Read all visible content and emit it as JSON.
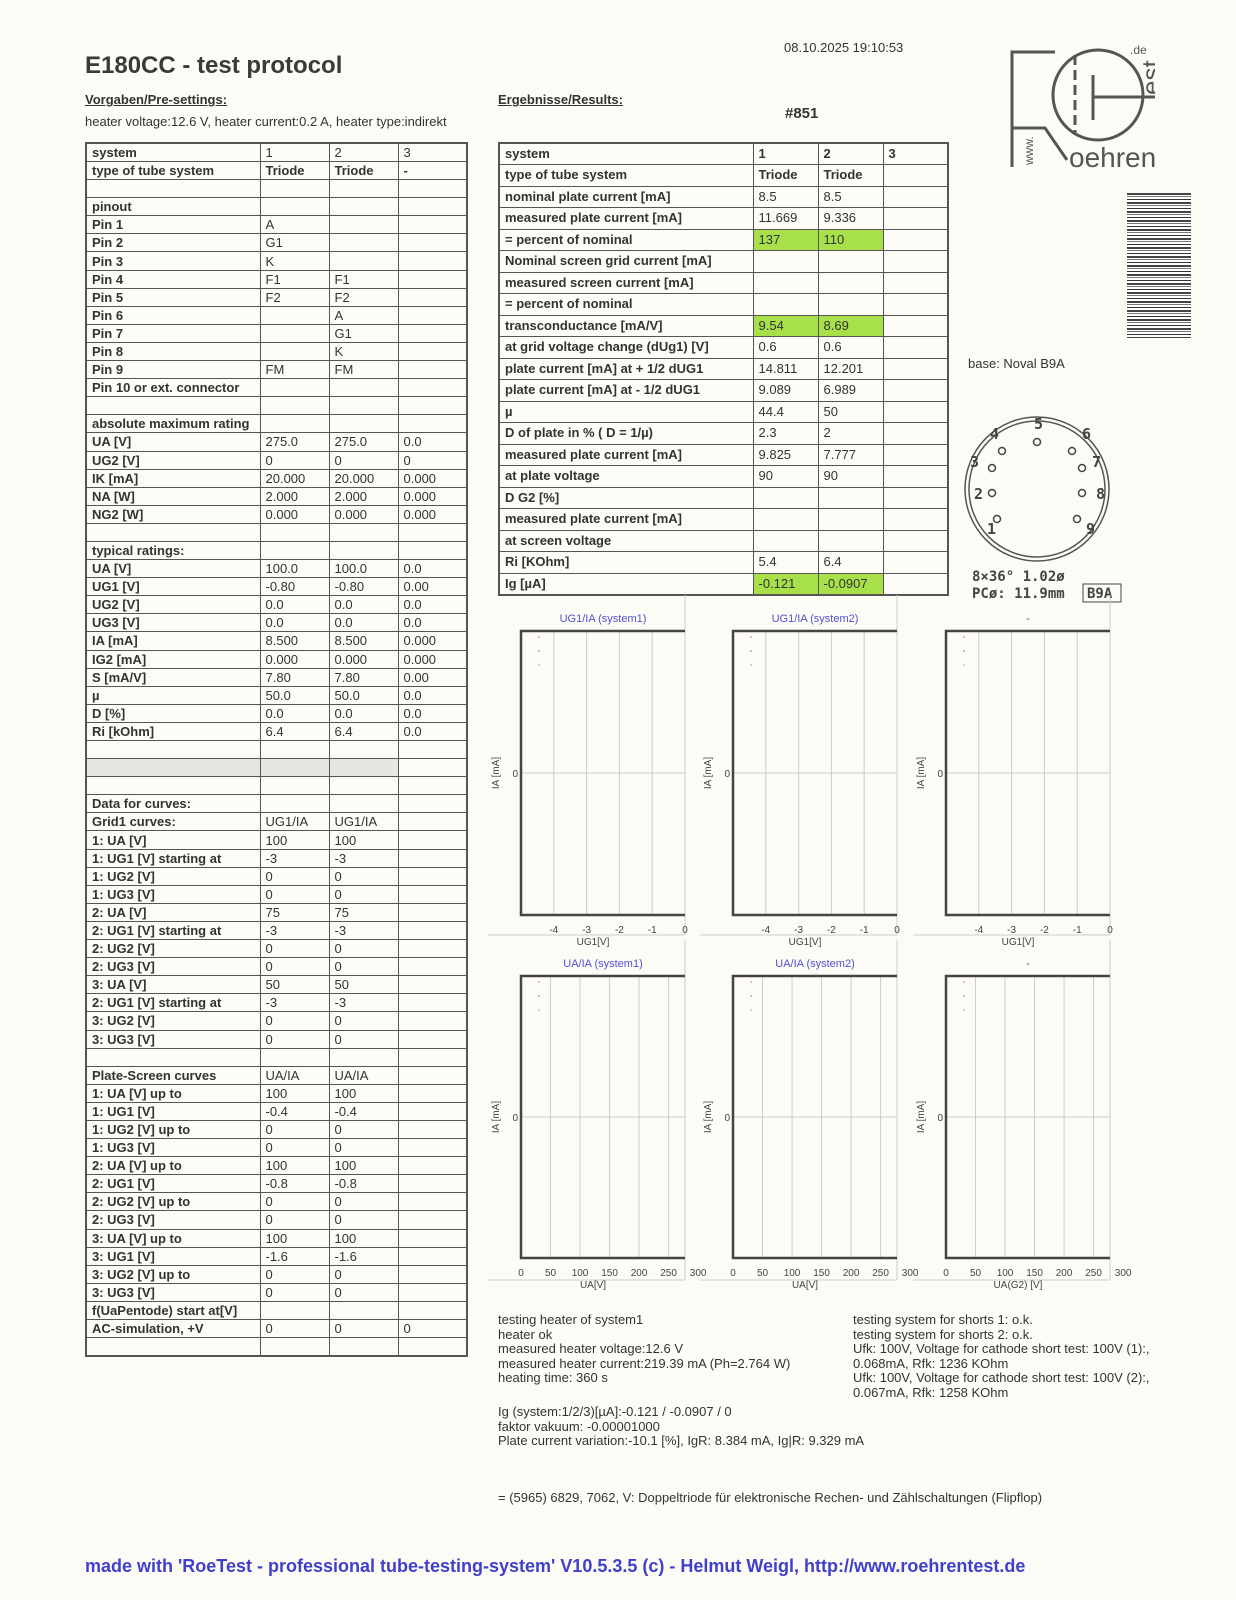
{
  "header": {
    "title": "E180CC  -  test protocol",
    "datetime": "08.10.2025  19:10:53",
    "pre_heading": "Vorgaben/Pre-settings:",
    "res_heading": "Ergebnisse/Results:",
    "heater": "heater voltage:12.6 V, heater current:0.2 A, heater type:indirekt",
    "serial": "#851"
  },
  "logo": {
    "text": "www.Roehrentest.de"
  },
  "presettings": [
    [
      "system",
      "1",
      "2",
      "3"
    ],
    [
      "type of tube system",
      "Triode",
      "Triode",
      "-"
    ],
    [
      "",
      "",
      "",
      ""
    ],
    [
      "pinout",
      "",
      "",
      ""
    ],
    [
      "Pin 1",
      "A",
      "",
      ""
    ],
    [
      "Pin 2",
      "G1",
      "",
      ""
    ],
    [
      "Pin 3",
      "K",
      "",
      ""
    ],
    [
      "Pin 4",
      "F1",
      "F1",
      ""
    ],
    [
      "Pin 5",
      "F2",
      "F2",
      ""
    ],
    [
      "Pin 6",
      "",
      "A",
      ""
    ],
    [
      "Pin 7",
      "",
      "G1",
      ""
    ],
    [
      "Pin 8",
      "",
      "K",
      ""
    ],
    [
      "Pin 9",
      "FM",
      "FM",
      ""
    ],
    [
      "Pin 10 or ext. connector",
      "",
      "",
      ""
    ],
    [
      "",
      "",
      "",
      ""
    ],
    [
      "absolute maximum rating",
      "",
      "",
      ""
    ],
    [
      "UA [V]",
      "275.0",
      "275.0",
      "0.0"
    ],
    [
      "UG2 [V]",
      "0",
      "0",
      "0"
    ],
    [
      "IK [mA]",
      "20.000",
      "20.000",
      "0.000"
    ],
    [
      "NA [W]",
      "2.000",
      "2.000",
      "0.000"
    ],
    [
      "NG2 [W]",
      "0.000",
      "0.000",
      "0.000"
    ],
    [
      "",
      "",
      "",
      ""
    ],
    [
      "typical ratings:",
      "",
      "",
      ""
    ],
    [
      "UA [V]",
      "100.0",
      "100.0",
      "0.0"
    ],
    [
      "UG1 [V]",
      "-0.80",
      "-0.80",
      "0.00"
    ],
    [
      "UG2 [V]",
      "0.0",
      "0.0",
      "0.0"
    ],
    [
      "UG3 [V]",
      "0.0",
      "0.0",
      "0.0"
    ],
    [
      "IA [mA]",
      "8.500",
      "8.500",
      "0.000"
    ],
    [
      "IG2 [mA]",
      "0.000",
      "0.000",
      "0.000"
    ],
    [
      "S [mA/V]",
      "7.80",
      "7.80",
      "0.00"
    ],
    [
      "µ",
      "50.0",
      "50.0",
      "0.0"
    ],
    [
      "D [%]",
      "0.0",
      "0.0",
      "0.0"
    ],
    [
      "Ri [kOhm]",
      "6.4",
      "6.4",
      "0.0"
    ],
    [
      "",
      "",
      "",
      ""
    ],
    [
      "",
      "",
      "",
      ""
    ],
    [
      "",
      "",
      "",
      ""
    ],
    [
      "Data for curves:",
      "",
      "",
      ""
    ],
    [
      "Grid1 curves:",
      "UG1/IA",
      "UG1/IA",
      ""
    ],
    [
      "1: UA [V]",
      "100",
      "100",
      ""
    ],
    [
      "1: UG1 [V] starting at",
      "-3",
      "-3",
      ""
    ],
    [
      "1: UG2 [V]",
      "0",
      "0",
      ""
    ],
    [
      "1: UG3 [V]",
      "0",
      "0",
      ""
    ],
    [
      "2: UA [V]",
      "75",
      "75",
      ""
    ],
    [
      "2: UG1 [V] starting at",
      "-3",
      "-3",
      ""
    ],
    [
      "2: UG2 [V]",
      "0",
      "0",
      ""
    ],
    [
      "2: UG3 [V]",
      "0",
      "0",
      ""
    ],
    [
      "3: UA [V]",
      "50",
      "50",
      ""
    ],
    [
      "2: UG1 [V] starting at",
      "-3",
      "-3",
      ""
    ],
    [
      "3: UG2 [V]",
      "0",
      "0",
      ""
    ],
    [
      "3: UG3 [V]",
      "0",
      "0",
      ""
    ],
    [
      "",
      "",
      "",
      ""
    ],
    [
      "Plate-Screen curves",
      "UA/IA",
      "UA/IA",
      ""
    ],
    [
      "1: UA [V] up to",
      "100",
      "100",
      ""
    ],
    [
      "1: UG1 [V]",
      "-0.4",
      "-0.4",
      ""
    ],
    [
      "1: UG2 [V] up to",
      "0",
      "0",
      ""
    ],
    [
      "1: UG3 [V]",
      "0",
      "0",
      ""
    ],
    [
      "2: UA [V] up to",
      "100",
      "100",
      ""
    ],
    [
      "2: UG1 [V]",
      "-0.8",
      "-0.8",
      ""
    ],
    [
      "2: UG2 [V] up to",
      "0",
      "0",
      ""
    ],
    [
      "2: UG3 [V]",
      "0",
      "0",
      ""
    ],
    [
      "3: UA [V] up to",
      "100",
      "100",
      ""
    ],
    [
      "3: UG1 [V]",
      "-1.6",
      "-1.6",
      ""
    ],
    [
      "3: UG2 [V] up to",
      "0",
      "0",
      ""
    ],
    [
      "3: UG3 [V]",
      "0",
      "0",
      ""
    ],
    [
      "f(UaPentode) start at[V]",
      "",
      "",
      ""
    ],
    [
      "AC-simulation, +V",
      "0",
      "0",
      "0"
    ],
    [
      "",
      "",
      "",
      ""
    ]
  ],
  "results": [
    [
      "system",
      "1",
      "2",
      "3"
    ],
    [
      "type of tube system",
      "Triode",
      "Triode",
      ""
    ],
    [
      "nominal plate current [mA]",
      "8.5",
      "8.5",
      ""
    ],
    [
      "measured plate current [mA]",
      "11.669",
      "9.336",
      ""
    ],
    [
      "= percent of nominal",
      "137",
      "110",
      ""
    ],
    [
      "Nominal screen grid current [mA]",
      "",
      "",
      ""
    ],
    [
      "measured screen current [mA]",
      "",
      "",
      ""
    ],
    [
      "= percent of nominal",
      "",
      "",
      ""
    ],
    [
      "transconductance [mA/V]",
      "9.54",
      "8.69",
      ""
    ],
    [
      "at grid voltage change (dUg1) [V]",
      "0.6",
      "0.6",
      ""
    ],
    [
      "plate current [mA] at + 1/2 dUG1",
      "14.811",
      "12.201",
      ""
    ],
    [
      "plate current [mA] at - 1/2 dUG1",
      "9.089",
      "6.989",
      ""
    ],
    [
      "µ",
      "44.4",
      "50",
      ""
    ],
    [
      "D of plate in % ( D = 1/µ)",
      "2.3",
      "2",
      ""
    ],
    [
      "measured plate current [mA]",
      "9.825",
      "7.777",
      ""
    ],
    [
      "at plate voltage",
      "90",
      "90",
      ""
    ],
    [
      "D G2 [%]",
      "",
      "",
      ""
    ],
    [
      "measured plate current [mA]",
      "",
      "",
      ""
    ],
    [
      "at screen voltage",
      "",
      "",
      ""
    ],
    [
      "Ri [KOhm]",
      "5.4",
      "6.4",
      ""
    ],
    [
      "Ig [µA]",
      "-0.121",
      "-0.0907",
      ""
    ]
  ],
  "highlight_color": "#a8e04a",
  "base": {
    "label": "base: Noval B9A",
    "line1": "8×36°  1.02ø",
    "line2": "PCø: 11.9mm",
    "badge": "B9A",
    "pins": [
      "1",
      "2",
      "3",
      "4",
      "5",
      "6",
      "7",
      "8",
      "9"
    ]
  },
  "chart_data": [
    {
      "type": "line",
      "title": "UG1/IA (system1)",
      "xlabel": "UG1[V]",
      "ylabel": "IA [mA]",
      "xticks": [
        "-4",
        "-3",
        "-2",
        "-1",
        "0"
      ],
      "xlim": [
        -5,
        0
      ],
      "yticks": [
        "0"
      ],
      "series": []
    },
    {
      "type": "line",
      "title": "UG1/IA (system2)",
      "xlabel": "UG1[V]",
      "ylabel": "IA [mA]",
      "xticks": [
        "-4",
        "-3",
        "-2",
        "-1",
        "0"
      ],
      "xlim": [
        -5,
        0
      ],
      "yticks": [
        "0"
      ],
      "series": []
    },
    {
      "type": "line",
      "title": "-",
      "xlabel": "UG1[V]",
      "ylabel": "IA [mA]",
      "xticks": [
        "-4",
        "-3",
        "-2",
        "-1",
        "0"
      ],
      "xlim": [
        -5,
        0
      ],
      "yticks": [
        "0"
      ],
      "series": []
    },
    {
      "type": "line",
      "title": "UA/IA (system1)",
      "xlabel": "UA[V]",
      "ylabel": "IA [mA]",
      "xticks": [
        "0",
        "50",
        "100",
        "150",
        "200",
        "250",
        "300"
      ],
      "xlim": [
        0,
        300
      ],
      "yticks": [
        "0"
      ],
      "series": []
    },
    {
      "type": "line",
      "title": "UA/IA (system2)",
      "xlabel": "UA[V]",
      "ylabel": "IA [mA]",
      "xticks": [
        "0",
        "50",
        "100",
        "150",
        "200",
        "250",
        "300"
      ],
      "xlim": [
        0,
        300
      ],
      "yticks": [
        "0"
      ],
      "series": []
    },
    {
      "type": "line",
      "title": "-",
      "xlabel": "UA(G2) [V]",
      "ylabel": "IA [mA]",
      "xticks": [
        "0",
        "50",
        "100",
        "150",
        "200",
        "250",
        "300"
      ],
      "xlim": [
        0,
        300
      ],
      "yticks": [
        "0"
      ],
      "series": []
    }
  ],
  "chart_title_color": "#5050d0",
  "notes": {
    "left": "testing heater of system1\nheater ok\nmeasured heater voltage:12.6 V\nmeasured heater current:219.39 mA (Ph=2.764 W)\nheating time: 360 s",
    "right": "testing system for shorts 1: o.k.\ntesting system for shorts 2: o.k.\nUfk: 100V, Voltage for cathode short test: 100V (1):,\n0.068mA, Rfk: 1236 KOhm\nUfk: 100V, Voltage for cathode short test: 100V (2):,\n0.067mA, Rfk: 1258 KOhm",
    "bottom": "Ig (system:1/2/3)[µA]:-0.121 / -0.0907 / 0\nfaktor vakuum: -0.00001000\nPlate current variation:-10.1 [%], IgR: 8.384 mA, Ig|R: 9.329 mA",
    "equiv": "= (5965) 6829,   7062, V: Doppeltriode für elektronische Rechen- und Zählschaltungen (Flipflop)"
  },
  "footer": "made with 'RoeTest - professional tube-testing-system' V10.5.3.5 (c) - Helmut Weigl, http://www.roehrentest.de"
}
